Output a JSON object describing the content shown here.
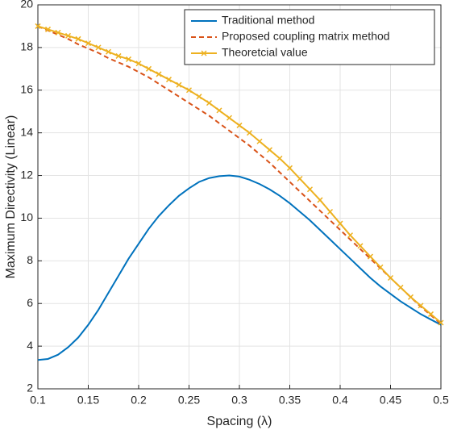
{
  "chart_data": {
    "type": "line",
    "xlabel": "Spacing (λ)",
    "ylabel": "Maximum Directivity (Linear)",
    "x": [
      0.1,
      0.11,
      0.12,
      0.13,
      0.14,
      0.15,
      0.16,
      0.17,
      0.18,
      0.19,
      0.2,
      0.21,
      0.22,
      0.23,
      0.24,
      0.25,
      0.26,
      0.27,
      0.28,
      0.29,
      0.3,
      0.31,
      0.32,
      0.33,
      0.34,
      0.35,
      0.36,
      0.37,
      0.38,
      0.39,
      0.4,
      0.41,
      0.42,
      0.43,
      0.44,
      0.45,
      0.46,
      0.47,
      0.48,
      0.49,
      0.5
    ],
    "series": [
      {
        "name": "Traditional method",
        "color": "#0072bd",
        "style": "solid",
        "values": [
          3.35,
          3.4,
          3.6,
          3.95,
          4.4,
          5.0,
          5.7,
          6.5,
          7.3,
          8.1,
          8.8,
          9.5,
          10.1,
          10.6,
          11.05,
          11.4,
          11.7,
          11.88,
          11.97,
          12.0,
          11.95,
          11.8,
          11.6,
          11.35,
          11.05,
          10.7,
          10.3,
          9.9,
          9.45,
          9.0,
          8.55,
          8.1,
          7.65,
          7.2,
          6.8,
          6.45,
          6.1,
          5.8,
          5.5,
          5.25,
          5.0
        ]
      },
      {
        "name": "Proposed coupling matrix method",
        "color": "#d95319",
        "style": "dashed",
        "values": [
          19.0,
          18.8,
          18.6,
          18.4,
          18.15,
          17.95,
          17.75,
          17.5,
          17.3,
          17.1,
          16.85,
          16.6,
          16.3,
          16.0,
          15.7,
          15.4,
          15.1,
          14.8,
          14.45,
          14.1,
          13.75,
          13.4,
          13.0,
          12.6,
          12.15,
          11.7,
          11.25,
          10.8,
          10.35,
          9.9,
          9.45,
          9.0,
          8.55,
          8.1,
          7.65,
          7.2,
          6.75,
          6.3,
          5.85,
          5.45,
          5.05
        ]
      },
      {
        "name": "Theoretcial value",
        "color": "#edb120",
        "style": "marker",
        "values": [
          19.0,
          18.85,
          18.7,
          18.55,
          18.4,
          18.2,
          18.0,
          17.8,
          17.6,
          17.45,
          17.25,
          17.0,
          16.75,
          16.5,
          16.25,
          16.0,
          15.7,
          15.4,
          15.05,
          14.7,
          14.35,
          14.0,
          13.6,
          13.2,
          12.8,
          12.35,
          11.85,
          11.35,
          10.85,
          10.3,
          9.75,
          9.2,
          8.7,
          8.2,
          7.7,
          7.2,
          6.75,
          6.3,
          5.9,
          5.5,
          5.1
        ]
      }
    ],
    "xlim": [
      0.1,
      0.5
    ],
    "xticks": [
      0.1,
      0.15,
      0.2,
      0.25,
      0.3,
      0.35,
      0.4,
      0.45,
      0.5
    ],
    "ylim": [
      2,
      20
    ],
    "yticks": [
      2,
      4,
      6,
      8,
      10,
      12,
      14,
      16,
      18,
      20
    ],
    "grid": true,
    "legend": "top-right"
  }
}
